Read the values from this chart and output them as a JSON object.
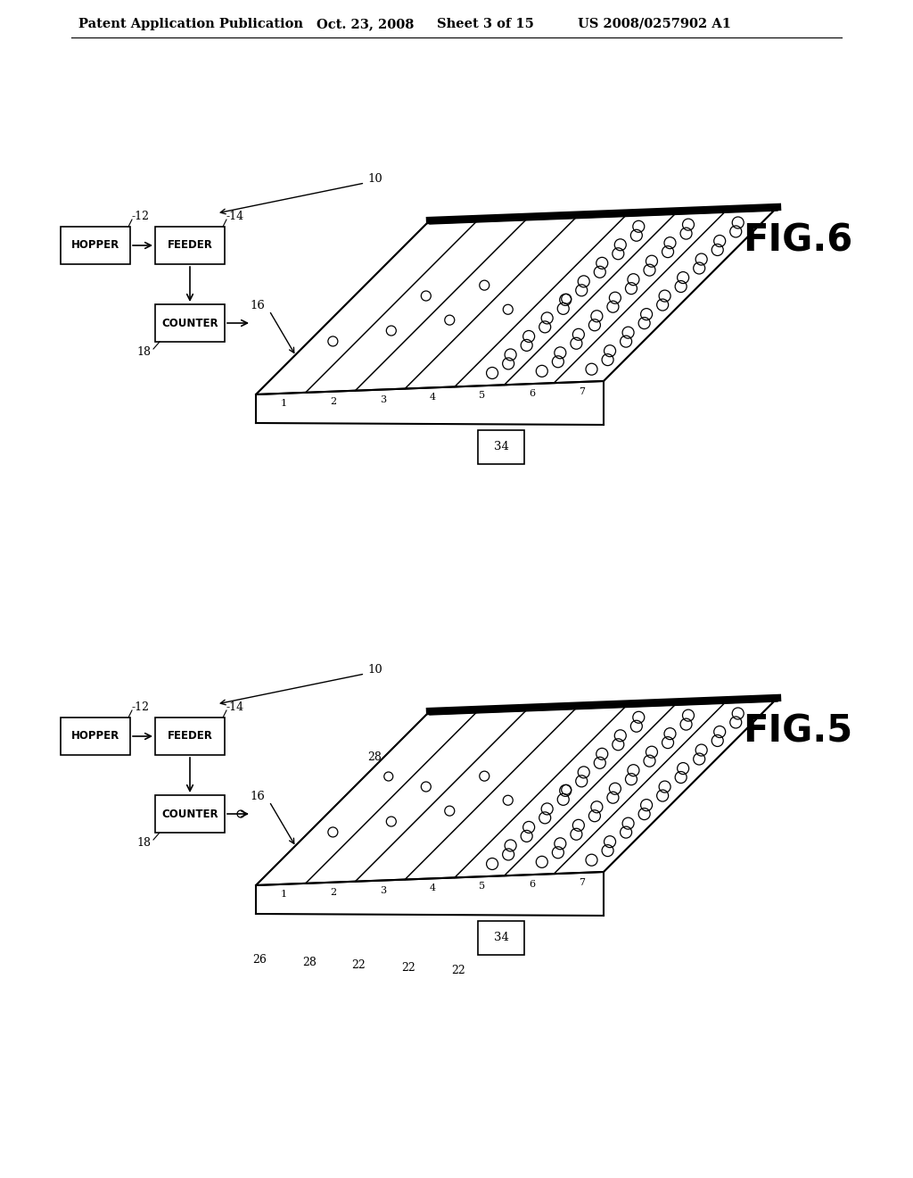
{
  "background_color": "#ffffff",
  "header_text": "Patent Application Publication",
  "header_date": "Oct. 23, 2008",
  "header_sheet": "Sheet 3 of 15",
  "header_patent": "US 2008/0257902 A1",
  "fig6_label": "FIG.6",
  "fig5_label": "FIG.5"
}
